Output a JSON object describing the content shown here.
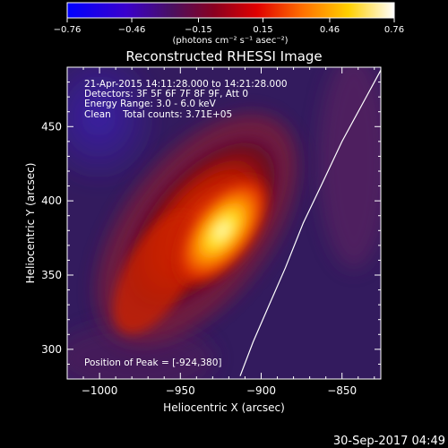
{
  "colorbar": {
    "ticks": [
      "-0.76",
      "-0.46",
      "-0.15",
      "0.15",
      "0.46",
      "0.76"
    ],
    "units": "(photons cm⁻² s⁻¹ asec⁻²)",
    "min": -0.76,
    "max": 0.76
  },
  "chart_data": {
    "type": "heatmap",
    "title": "Reconstructed RHESSI Image",
    "xlabel": "Heliocentric X (arcsec)",
    "ylabel": "Heliocentric Y (arcsec)",
    "xlim": [
      -1020,
      -826
    ],
    "ylim": [
      280,
      490
    ],
    "x_ticks": [
      -1000,
      -950,
      -900,
      -850
    ],
    "x_tick_labels": [
      "−1000",
      "−950",
      "−900",
      "−850"
    ],
    "y_ticks": [
      300,
      350,
      400,
      450
    ],
    "y_tick_labels": [
      "300",
      "350",
      "400",
      "450"
    ],
    "grid": false,
    "colormap": "heat (blue-purple-red-orange-yellow-white)",
    "peak": [
      -924,
      380
    ],
    "peak_value": 0.76,
    "annotations": [
      "21-Apr-2015 14:11:28.000 to 14:21:28.000",
      "Detectors: 3F 5F 6F 7F 8F 9F, Att 0",
      "Energy Range: 3.0 - 6.0 keV",
      "Clean    Total counts: 3.71E+05",
      "Position of Peak = [-924,380]"
    ],
    "limb": [
      [
        -825,
        490
      ],
      [
        -835,
        470
      ],
      [
        -850,
        440
      ],
      [
        -863,
        410
      ],
      [
        -874,
        385
      ],
      [
        -885,
        355
      ],
      [
        -895,
        330
      ],
      [
        -905,
        305
      ],
      [
        -913,
        282
      ]
    ]
  },
  "footer": {
    "timestamp": "30-Sep-2017 04:49"
  },
  "colors": {
    "background": "#000000",
    "text": "#ffffff",
    "limb": "#ffffff"
  }
}
